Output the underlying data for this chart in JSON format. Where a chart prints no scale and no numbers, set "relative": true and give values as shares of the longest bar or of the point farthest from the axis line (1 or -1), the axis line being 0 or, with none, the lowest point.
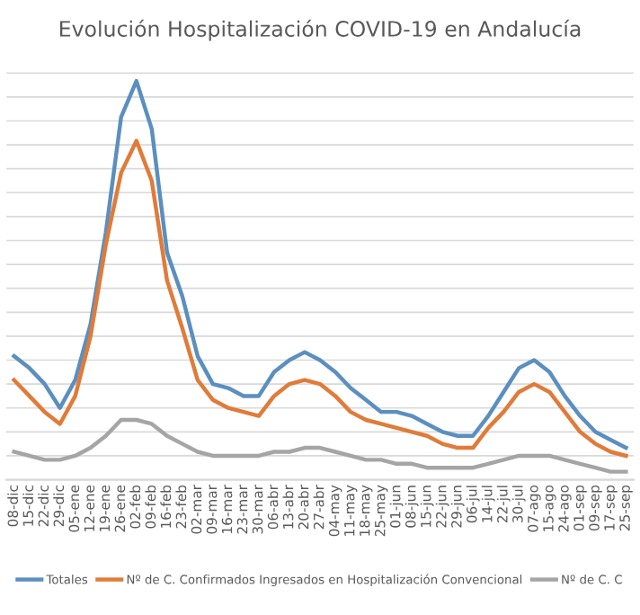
{
  "chart_data": {
    "type": "line",
    "title": "Evolución Hospitalización COVID-19 en Andalucía",
    "relative": true,
    "grid": "y",
    "legend": "bottom",
    "marker": "none",
    "line_style": "solid",
    "categories": [
      "08-dic",
      "15-dic",
      "22-dic",
      "29-dic",
      "05-ene",
      "12-ene",
      "19-ene",
      "26-ene",
      "02-feb",
      "09-feb",
      "16-feb",
      "23-feb",
      "02-mar",
      "09-mar",
      "16-mar",
      "23-mar",
      "30-mar",
      "06-abr",
      "13-abr",
      "20-abr",
      "27-abr",
      "04-may",
      "11-may",
      "18-may",
      "25-may",
      "01-jun",
      "08-jun",
      "15-jun",
      "22-jun",
      "29-jun",
      "06-jul",
      "14-jul",
      "22-jul",
      "30-jul",
      "07-ago",
      "15-ago",
      "24-ago",
      "01-sep",
      "09-sep",
      "17-sep",
      "25-sep"
    ],
    "series": [
      {
        "name": "Totales",
        "color": "#5b8fbf",
        "values": [
          0.31,
          0.28,
          0.24,
          0.18,
          0.25,
          0.39,
          0.62,
          0.91,
          1.0,
          0.88,
          0.57,
          0.46,
          0.31,
          0.24,
          0.23,
          0.21,
          0.21,
          0.27,
          0.3,
          0.32,
          0.3,
          0.27,
          0.23,
          0.2,
          0.17,
          0.17,
          0.16,
          0.14,
          0.12,
          0.11,
          0.11,
          0.16,
          0.22,
          0.28,
          0.3,
          0.27,
          0.21,
          0.16,
          0.12,
          0.1,
          0.08
        ]
      },
      {
        "name": "Nº de C. Confirmados Ingresados en Hospitalización Convencional",
        "color": "#e07b39",
        "values": [
          0.25,
          0.21,
          0.17,
          0.14,
          0.21,
          0.36,
          0.59,
          0.77,
          0.85,
          0.75,
          0.5,
          0.38,
          0.25,
          0.2,
          0.18,
          0.17,
          0.16,
          0.21,
          0.24,
          0.25,
          0.24,
          0.21,
          0.17,
          0.15,
          0.14,
          0.13,
          0.12,
          0.11,
          0.09,
          0.08,
          0.08,
          0.13,
          0.17,
          0.22,
          0.24,
          0.22,
          0.17,
          0.12,
          0.09,
          0.07,
          0.06
        ]
      },
      {
        "name": "Nº de C. C",
        "color": "#a5a5a5",
        "values": [
          0.07,
          0.06,
          0.05,
          0.05,
          0.06,
          0.08,
          0.11,
          0.15,
          0.15,
          0.14,
          0.11,
          0.09,
          0.07,
          0.06,
          0.06,
          0.06,
          0.06,
          0.07,
          0.07,
          0.08,
          0.08,
          0.07,
          0.06,
          0.05,
          0.05,
          0.04,
          0.04,
          0.03,
          0.03,
          0.03,
          0.03,
          0.04,
          0.05,
          0.06,
          0.06,
          0.06,
          0.05,
          0.04,
          0.03,
          0.02,
          0.02
        ]
      }
    ]
  }
}
